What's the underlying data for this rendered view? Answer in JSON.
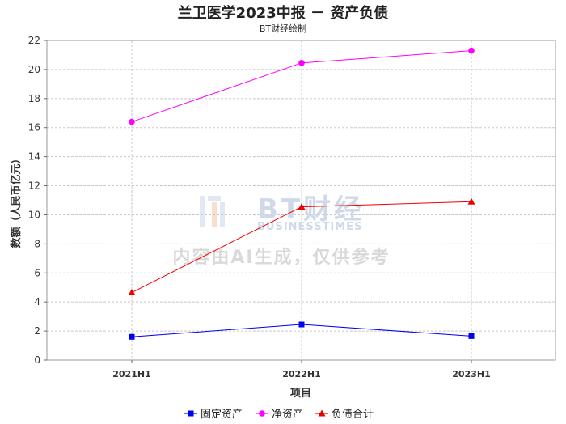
{
  "title": "兰卫医学2023中报 － 资产负债",
  "subtitle": "BT财经绘制",
  "watermark": {
    "brand": "BT财经",
    "brand_sub": "BUSINESSTIMES",
    "note": "内容由AI生成，仅供参考"
  },
  "chart_data": {
    "type": "line",
    "categories": [
      "2021H1",
      "2022H1",
      "2023H1"
    ],
    "xlabel": "项目",
    "ylabel": "数额（人民币亿元）",
    "ylim": [
      0,
      22
    ],
    "yticks": [
      0,
      2,
      4,
      6,
      8,
      10,
      12,
      14,
      16,
      18,
      20,
      22
    ],
    "grid": true,
    "legend_position": "bottom",
    "series": [
      {
        "name": "固定资产",
        "values": [
          1.6,
          2.45,
          1.65
        ],
        "color": "#0000ee",
        "marker": "square"
      },
      {
        "name": "净资产",
        "values": [
          16.4,
          20.45,
          21.3
        ],
        "color": "#ff00ff",
        "marker": "circle"
      },
      {
        "name": "负债合计",
        "values": [
          4.65,
          10.55,
          10.9
        ],
        "color": "#ee0000",
        "marker": "triangle"
      }
    ]
  }
}
